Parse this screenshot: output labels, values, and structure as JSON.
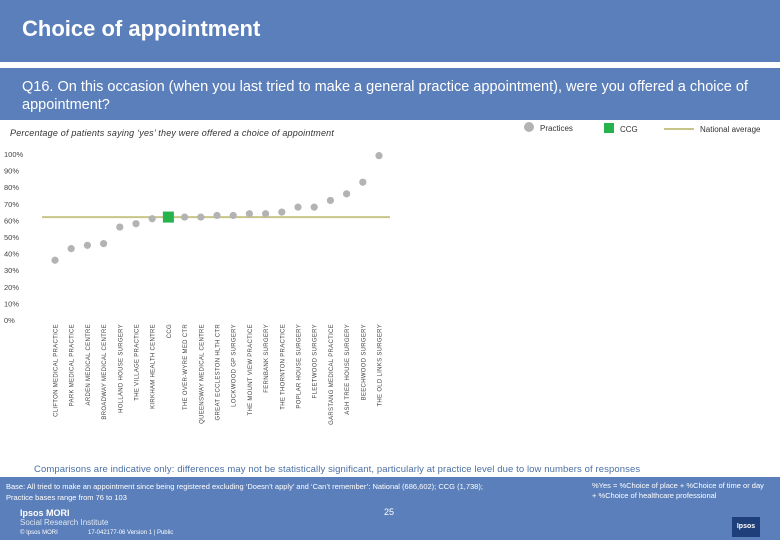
{
  "header": {
    "title": "Choice of appointment",
    "question": "Q16. On this occasion (when you last tried to make a general practice appointment), were you offered a choice of appointment?",
    "subtitle": "Percentage of patients saying ‘yes’ they were offered a choice of appointment"
  },
  "legend": {
    "practices": "Practices",
    "ccg": "CCG",
    "national": "National average"
  },
  "colors": {
    "practice": "#b3b3b3",
    "ccg": "#27b34b",
    "national": "#c8c58a",
    "axis_text": "#444444",
    "brand": "#5b7fba"
  },
  "chart_data": {
    "type": "scatter",
    "title": "Percentage of patients saying ‘yes’ they were offered a choice of appointment",
    "xlabel": "",
    "ylabel": "",
    "ylim": [
      0,
      100
    ],
    "yticks": [
      "0%",
      "10%",
      "20%",
      "30%",
      "40%",
      "50%",
      "60%",
      "70%",
      "80%",
      "90%",
      "100%"
    ],
    "national_average": 62,
    "categories": [
      "CLIFTON MEDICAL PRACTICE",
      "PARK MEDICAL PRACTICE",
      "ARDEN MEDICAL CENTRE",
      "BROADWAY MEDICAL CENTRE",
      "HOLLAND HOUSE SURGERY",
      "THE VILLAGE PRACTICE",
      "KIRKHAM HEALTH CENTRE",
      "CCG",
      "THE OVER-WYRE MED CTR",
      "QUEENSWAY MEDICAL CENTRE",
      "GREAT ECCLESTON HLTH CTR",
      "LOCKWOOD GP SURGERY",
      "THE MOUNT VIEW PRACTICE",
      "FERNBANK SURGERY",
      "THE THORNTON PRACTICE",
      "POPLAR HOUSE SURGERY",
      "FLEETWOOD SURGERY",
      "GARSTANG MEDICAL PRACTICE",
      "ASH TREE HOUSE SURGERY",
      "BEECHWOOD SURGERY",
      "THE OLD LINKS SURGERY"
    ],
    "values": [
      36,
      43,
      45,
      46,
      56,
      58,
      61,
      62,
      62,
      62,
      63,
      63,
      64,
      64,
      65,
      68,
      68,
      72,
      76,
      83,
      99
    ],
    "ccg_index": 7
  },
  "footer": {
    "note": "Comparisons are indicative only: differences may not be statistically significant, particularly at practice level due to low numbers of responses",
    "base_line1": "Base: All tried to make an appointment since being registered excluding ‘Doesn’t apply’ and ‘Can’t remember’: National (686,602); CCG (1,738);",
    "base_line2": "Practice bases range from 76 to 103",
    "key_line1": "%Yes = %Choice of place + %Choice of time or day",
    "key_line2": "+ %Choice of healthcare professional",
    "logo_top": "Ipsos MORI",
    "logo_bottom": "Social Research Institute",
    "page_number": "25",
    "copyright": "© Ipsos MORI",
    "version": "17-042177-06 Version 1 | Public",
    "badge": "Ipsos"
  }
}
